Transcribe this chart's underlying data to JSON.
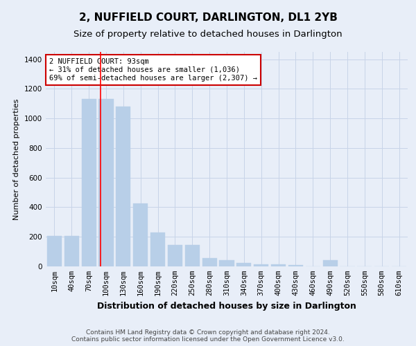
{
  "title": "2, NUFFIELD COURT, DARLINGTON, DL1 2YB",
  "subtitle": "Size of property relative to detached houses in Darlington",
  "xlabel": "Distribution of detached houses by size in Darlington",
  "ylabel": "Number of detached properties",
  "categories": [
    "10sqm",
    "40sqm",
    "70sqm",
    "100sqm",
    "130sqm",
    "160sqm",
    "190sqm",
    "220sqm",
    "250sqm",
    "280sqm",
    "310sqm",
    "340sqm",
    "370sqm",
    "400sqm",
    "430sqm",
    "460sqm",
    "490sqm",
    "520sqm",
    "550sqm",
    "580sqm",
    "610sqm"
  ],
  "values": [
    205,
    205,
    1130,
    1130,
    1080,
    425,
    230,
    145,
    145,
    55,
    40,
    25,
    15,
    15,
    10,
    0,
    40,
    0,
    0,
    0,
    0
  ],
  "bar_color": "#b8cfe8",
  "bar_edgecolor": "#b8cfe8",
  "grid_color": "#c8d4e8",
  "background_color": "#e8eef8",
  "red_line_x": 2.67,
  "annotation_text": "2 NUFFIELD COURT: 93sqm\n← 31% of detached houses are smaller (1,036)\n69% of semi-detached houses are larger (2,307) →",
  "annotation_box_color": "#ffffff",
  "annotation_box_edgecolor": "#cc0000",
  "ylim": [
    0,
    1450
  ],
  "yticks": [
    0,
    200,
    400,
    600,
    800,
    1000,
    1200,
    1400
  ],
  "footer_line1": "Contains HM Land Registry data © Crown copyright and database right 2024.",
  "footer_line2": "Contains public sector information licensed under the Open Government Licence v3.0.",
  "title_fontsize": 11,
  "subtitle_fontsize": 9.5,
  "xlabel_fontsize": 9,
  "ylabel_fontsize": 8,
  "tick_fontsize": 7.5,
  "footer_fontsize": 6.5,
  "annotation_fontsize": 7.5
}
